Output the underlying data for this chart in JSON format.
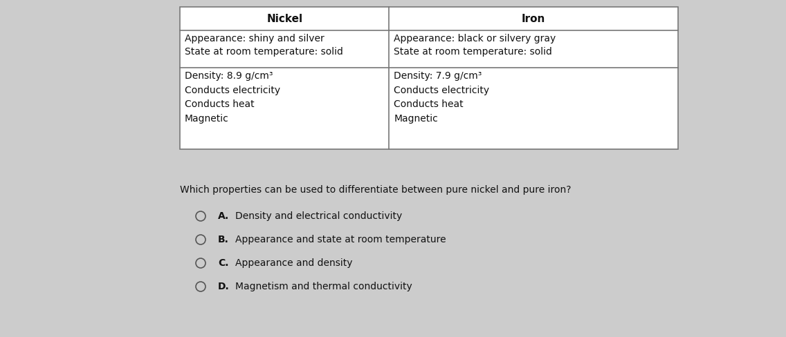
{
  "bg_color": "#cccccc",
  "table_bg": "#ffffff",
  "col1_header": "Nickel",
  "col2_header": "Iron",
  "col1_row1": "Appearance: shiny and silver\nState at room temperature: solid",
  "col2_row1": "Appearance: black or silvery gray\nState at room temperature: solid",
  "col1_row2": "Density: 8.9 g/cm³\nConducts electricity\nConducts heat\nMagnetic",
  "col2_row2": "Density: 7.9 g/cm³\nConducts electricity\nConducts heat\nMagnetic",
  "question": "Which properties can be used to differentiate between pure nickel and pure iron?",
  "options": [
    {
      "label": "A.",
      "text": "Density and electrical conductivity"
    },
    {
      "label": "B.",
      "text": "Appearance and state at room temperature"
    },
    {
      "label": "C.",
      "text": "Appearance and density"
    },
    {
      "label": "D.",
      "text": "Magnetism and thermal conductivity"
    }
  ],
  "header_fontsize": 11,
  "cell_fontsize": 10,
  "question_fontsize": 10,
  "option_fontsize": 10
}
